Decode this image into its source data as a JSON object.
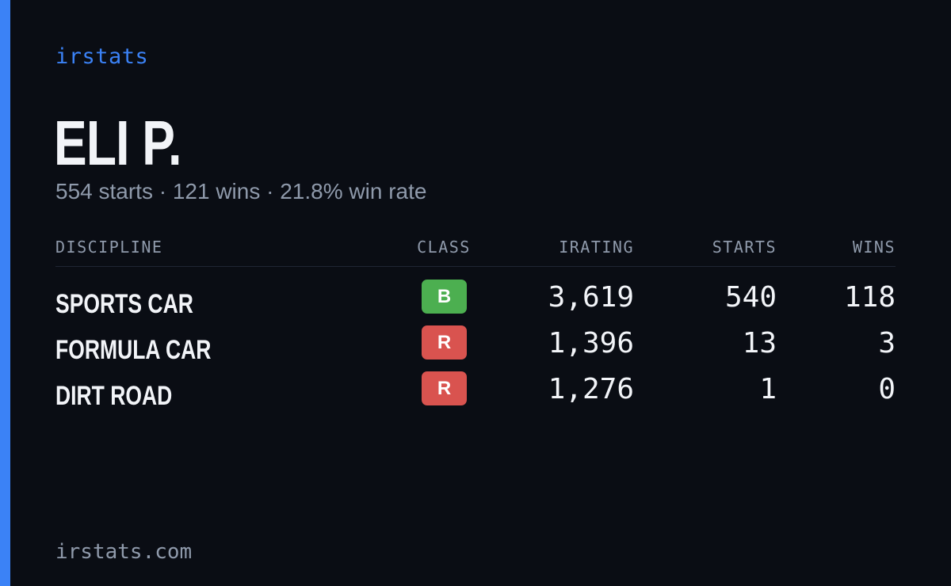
{
  "brand": {
    "name": "irstats",
    "accent_color": "#3b82f6"
  },
  "driver": {
    "name": "ELI P.",
    "summary": "554 starts · 121 wins · 21.8% win rate"
  },
  "table": {
    "columns": {
      "discipline": "DISCIPLINE",
      "class": "CLASS",
      "irating": "IRATING",
      "starts": "STARTS",
      "wins": "WINS"
    },
    "rows": [
      {
        "discipline": "SPORTS CAR",
        "class": "B",
        "class_color": "#4caf50",
        "irating": "3,619",
        "starts": "540",
        "wins": "118"
      },
      {
        "discipline": "FORMULA CAR",
        "class": "R",
        "class_color": "#d9534f",
        "irating": "1,396",
        "starts": "13",
        "wins": "3"
      },
      {
        "discipline": "DIRT ROAD",
        "class": "R",
        "class_color": "#d9534f",
        "irating": "1,276",
        "starts": "1",
        "wins": "0"
      }
    ]
  },
  "footer": {
    "url": "irstats.com"
  }
}
